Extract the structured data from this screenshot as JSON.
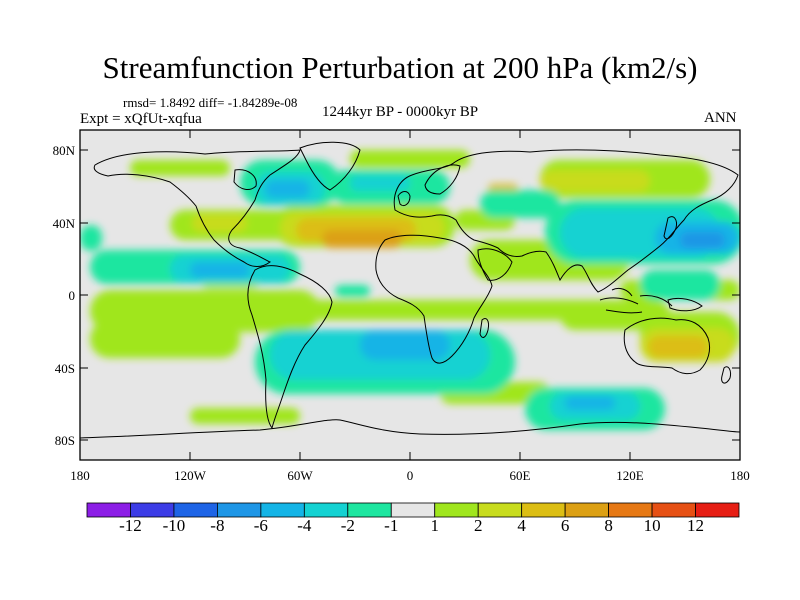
{
  "title": "Streamfunction Perturbation at 200 hPa (km2/s)",
  "stats": "rmsd= 1.8492 diff= -1.84289e-08",
  "experiment": "Expt = xQfUt-xqfua",
  "period": "1244kyr BP - 0000kyr BP",
  "season": "ANN",
  "lat_ticks": [
    "80N",
    "40N",
    "0",
    "40S",
    "80S"
  ],
  "lon_ticks": [
    "180",
    "120W",
    "60W",
    "0",
    "60E",
    "120E",
    "180"
  ],
  "colorbar": {
    "labels": [
      "-12",
      "-10",
      "-8",
      "-6",
      "-4",
      "-2",
      "-1",
      "1",
      "2",
      "4",
      "6",
      "8",
      "10",
      "12"
    ],
    "colors": [
      "#8c1ee6",
      "#3c3ce6",
      "#1e64e6",
      "#1e96e6",
      "#14b4e6",
      "#14d2d2",
      "#1ee6a0",
      "#e6e6e6",
      "#a0e61e",
      "#c8dc1e",
      "#dcbe14",
      "#dca014",
      "#e67814",
      "#e65014",
      "#e61e14"
    ]
  },
  "field_colors": {
    "background": "#e6e6e6",
    "pos1": "#a0e61e",
    "pos2": "#c8dc1e",
    "pos3": "#dcbe14",
    "pos4": "#dca014",
    "neg1": "#1ee6a0",
    "neg2": "#14d2d2",
    "neg3": "#14b4e6",
    "neg4": "#1e96e6"
  }
}
